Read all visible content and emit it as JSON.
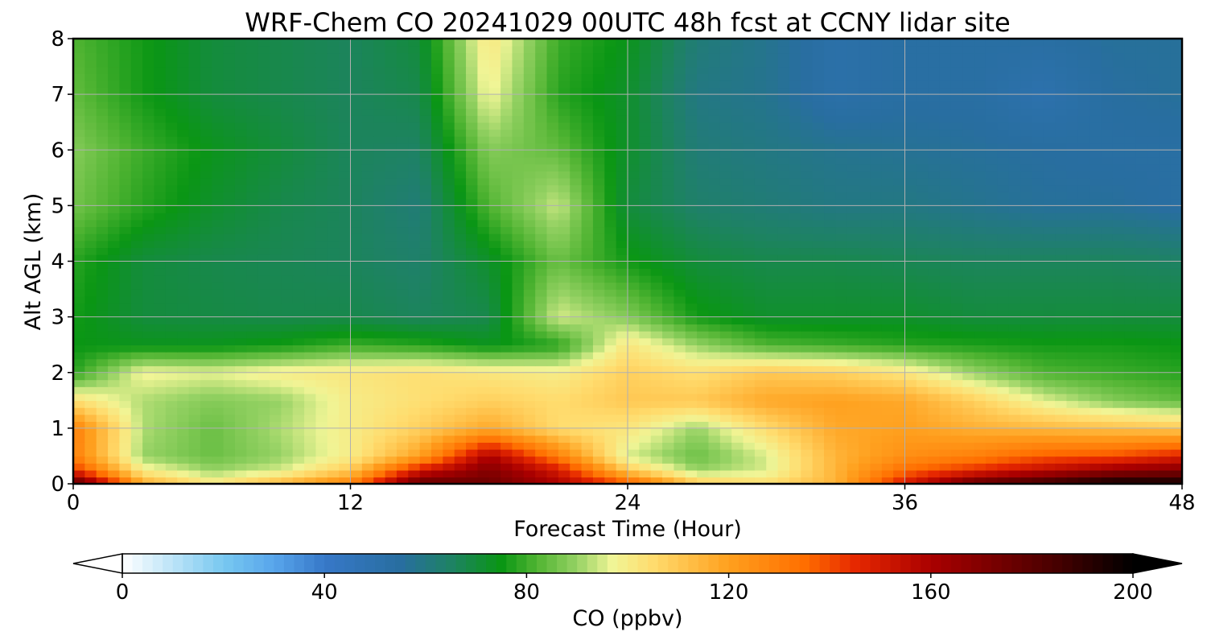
{
  "chart_data": {
    "type": "heatmap",
    "title": "WRF-Chem CO  20241029 00UTC 48h fcst at CCNY lidar site",
    "xlabel": "Forecast Time (Hour)",
    "ylabel": "Alt AGL (km)",
    "xlim": [
      0,
      48
    ],
    "ylim": [
      0,
      8
    ],
    "xticks": [
      0,
      12,
      24,
      36,
      48
    ],
    "yticks": [
      0,
      1,
      2,
      3,
      4,
      5,
      6,
      7,
      8
    ],
    "grid": true,
    "x": [
      0,
      3,
      6,
      9,
      12,
      15,
      18,
      21,
      24,
      27,
      30,
      33,
      36,
      39,
      42,
      45,
      48
    ],
    "y": [
      0,
      0.25,
      0.5,
      1,
      1.5,
      2,
      2.5,
      3,
      4,
      5,
      6,
      7,
      8
    ],
    "z": [
      [
        185,
        118,
        102,
        115,
        130,
        180,
        175,
        160,
        140,
        110,
        105,
        115,
        150,
        180,
        190,
        200,
        198
      ],
      [
        145,
        100,
        90,
        95,
        110,
        150,
        170,
        150,
        110,
        90,
        95,
        115,
        135,
        145,
        155,
        165,
        170
      ],
      [
        130,
        90,
        85,
        90,
        100,
        120,
        160,
        130,
        95,
        85,
        95,
        115,
        125,
        130,
        138,
        140,
        148
      ],
      [
        130,
        92,
        85,
        92,
        100,
        108,
        118,
        105,
        102,
        90,
        105,
        118,
        120,
        116,
        114,
        112,
        110
      ],
      [
        104,
        92,
        88,
        90,
        100,
        104,
        108,
        105,
        110,
        110,
        118,
        120,
        118,
        108,
        96,
        88,
        84
      ],
      [
        78,
        98,
        96,
        100,
        102,
        104,
        102,
        100,
        108,
        104,
        110,
        108,
        102,
        90,
        82,
        80,
        78
      ],
      [
        75,
        74,
        74,
        76,
        80,
        78,
        74,
        78,
        102,
        90,
        82,
        80,
        78,
        77,
        76,
        76,
        75
      ],
      [
        76,
        70,
        69,
        68,
        68,
        66,
        68,
        95,
        88,
        76,
        72,
        72,
        72,
        70,
        70,
        70,
        70
      ],
      [
        78,
        70,
        68,
        67,
        66,
        64,
        72,
        85,
        76,
        70,
        68,
        68,
        67,
        66,
        66,
        66,
        65
      ],
      [
        86,
        78,
        72,
        68,
        66,
        62,
        82,
        94,
        70,
        64,
        62,
        60,
        60,
        58,
        56,
        56,
        54
      ],
      [
        88,
        80,
        74,
        70,
        66,
        65,
        88,
        84,
        72,
        62,
        60,
        58,
        57,
        56,
        55,
        54,
        54
      ],
      [
        84,
        76,
        70,
        68,
        66,
        68,
        98,
        78,
        72,
        60,
        58,
        52,
        54,
        54,
        50,
        55,
        56
      ],
      [
        82,
        76,
        70,
        68,
        66,
        70,
        102,
        80,
        74,
        62,
        58,
        52,
        54,
        54,
        54,
        56,
        56
      ]
    ],
    "colorbar": {
      "label": "CO  (ppbv)",
      "min": 0,
      "max": 200,
      "ticks": [
        0,
        40,
        80,
        120,
        160,
        200
      ],
      "extend": "both",
      "location": "bottom"
    }
  }
}
